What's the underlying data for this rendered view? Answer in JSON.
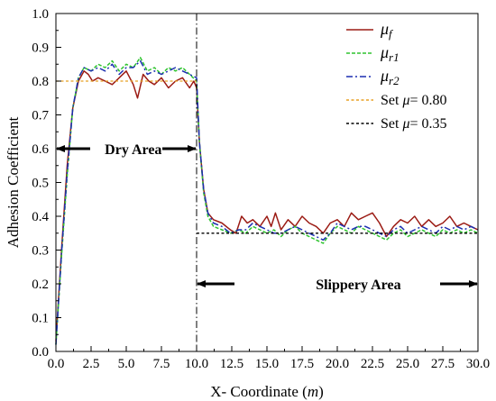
{
  "chart_data": {
    "type": "line",
    "xlabel": "X- Coordinate",
    "xlabel_unit": "m",
    "ylabel": "Adhesion Coefficient",
    "xlim": [
      0,
      30
    ],
    "ylim": [
      0,
      1.0
    ],
    "x_ticks": [
      "0.0",
      "2.5",
      "5.0",
      "7.5",
      "10.0",
      "12.5",
      "15.0",
      "17.5",
      "20.0",
      "22.5",
      "25.0",
      "27.5",
      "30.0"
    ],
    "y_ticks": [
      "0.0",
      "0.1",
      "0.2",
      "0.3",
      "0.4",
      "0.5",
      "0.6",
      "0.7",
      "0.8",
      "0.9",
      "1.0"
    ],
    "grid": false,
    "legend_position": "top-right",
    "series": [
      {
        "name": "μf",
        "legend": {
          "symbol": "μ",
          "sub": "f",
          "suffix": ""
        },
        "color": "#9b1b14",
        "style": "solid",
        "x": [
          0,
          0.4,
          0.8,
          1.2,
          1.6,
          2.0,
          2.3,
          2.6,
          3.0,
          3.5,
          4.0,
          4.5,
          5.0,
          5.5,
          5.8,
          6.2,
          6.6,
          7.0,
          7.5,
          8.0,
          8.5,
          9.0,
          9.5,
          9.8,
          10.0,
          10.2,
          10.5,
          10.8,
          11.2,
          11.8,
          12.4,
          12.8,
          13.2,
          13.6,
          14.0,
          14.5,
          15.0,
          15.3,
          15.6,
          16.0,
          16.5,
          17.0,
          17.5,
          18.0,
          18.5,
          19.0,
          19.5,
          20.0,
          20.5,
          21.0,
          21.5,
          22.0,
          22.5,
          23.0,
          23.5,
          24.0,
          24.5,
          25.0,
          25.5,
          26.0,
          26.5,
          27.0,
          27.5,
          28.0,
          28.5,
          29.0,
          29.5,
          30.0
        ],
        "y": [
          0.03,
          0.3,
          0.55,
          0.72,
          0.8,
          0.83,
          0.82,
          0.8,
          0.81,
          0.8,
          0.79,
          0.81,
          0.83,
          0.79,
          0.75,
          0.82,
          0.8,
          0.79,
          0.81,
          0.78,
          0.8,
          0.81,
          0.78,
          0.8,
          0.78,
          0.62,
          0.48,
          0.41,
          0.39,
          0.38,
          0.36,
          0.35,
          0.4,
          0.38,
          0.39,
          0.37,
          0.4,
          0.37,
          0.41,
          0.36,
          0.39,
          0.37,
          0.4,
          0.38,
          0.37,
          0.35,
          0.38,
          0.39,
          0.37,
          0.41,
          0.39,
          0.4,
          0.41,
          0.38,
          0.34,
          0.37,
          0.39,
          0.38,
          0.4,
          0.37,
          0.39,
          0.37,
          0.38,
          0.4,
          0.37,
          0.38,
          0.37,
          0.36
        ]
      },
      {
        "name": "μr1",
        "legend": {
          "symbol": "μ",
          "sub": "r1",
          "suffix": ""
        },
        "color": "#2fc42f",
        "style": "dashed",
        "x": [
          0,
          0.4,
          0.8,
          1.2,
          1.6,
          2.0,
          2.5,
          3.0,
          3.5,
          4.0,
          4.5,
          5.0,
          5.5,
          6.0,
          6.5,
          7.0,
          7.5,
          8.0,
          8.5,
          9.0,
          9.5,
          10.0,
          10.2,
          10.5,
          10.8,
          11.2,
          11.8,
          12.4,
          13.0,
          13.5,
          14.0,
          14.5,
          15.0,
          15.5,
          16.0,
          16.5,
          17.0,
          17.5,
          18.0,
          18.5,
          19.0,
          19.5,
          20.0,
          20.5,
          21.0,
          21.5,
          22.0,
          22.5,
          23.0,
          23.5,
          24.0,
          24.5,
          25.0,
          25.5,
          26.0,
          26.5,
          27.0,
          27.5,
          28.0,
          28.5,
          29.0,
          29.5,
          30.0
        ],
        "y": [
          0.02,
          0.28,
          0.52,
          0.72,
          0.81,
          0.84,
          0.83,
          0.85,
          0.84,
          0.86,
          0.83,
          0.85,
          0.84,
          0.87,
          0.83,
          0.84,
          0.82,
          0.84,
          0.83,
          0.84,
          0.82,
          0.8,
          0.62,
          0.47,
          0.4,
          0.37,
          0.36,
          0.35,
          0.36,
          0.35,
          0.37,
          0.36,
          0.35,
          0.36,
          0.34,
          0.36,
          0.37,
          0.35,
          0.34,
          0.33,
          0.32,
          0.35,
          0.37,
          0.36,
          0.35,
          0.37,
          0.36,
          0.35,
          0.34,
          0.33,
          0.35,
          0.36,
          0.34,
          0.35,
          0.36,
          0.35,
          0.34,
          0.36,
          0.35,
          0.36,
          0.35,
          0.36,
          0.35
        ]
      },
      {
        "name": "μr2",
        "legend": {
          "symbol": "μ",
          "sub": "r2",
          "suffix": ""
        },
        "color": "#1c2fb0",
        "style": "dashdot",
        "x": [
          0,
          0.4,
          0.8,
          1.2,
          1.6,
          2.0,
          2.5,
          3.0,
          3.5,
          4.0,
          4.5,
          5.0,
          5.5,
          6.0,
          6.5,
          7.0,
          7.5,
          8.0,
          8.5,
          9.0,
          9.5,
          10.0,
          10.2,
          10.5,
          10.8,
          11.2,
          11.8,
          12.4,
          13.0,
          13.5,
          14.0,
          14.5,
          15.0,
          15.5,
          16.0,
          16.5,
          17.0,
          17.5,
          18.0,
          18.5,
          19.0,
          19.5,
          20.0,
          20.5,
          21.0,
          21.5,
          22.0,
          22.5,
          23.0,
          23.5,
          24.0,
          24.5,
          25.0,
          25.5,
          26.0,
          26.5,
          27.0,
          27.5,
          28.0,
          28.5,
          29.0,
          29.5,
          30.0
        ],
        "y": [
          0.02,
          0.29,
          0.53,
          0.72,
          0.81,
          0.84,
          0.83,
          0.84,
          0.83,
          0.85,
          0.82,
          0.84,
          0.84,
          0.86,
          0.82,
          0.83,
          0.82,
          0.83,
          0.84,
          0.83,
          0.82,
          0.81,
          0.62,
          0.48,
          0.41,
          0.38,
          0.37,
          0.35,
          0.36,
          0.36,
          0.38,
          0.37,
          0.36,
          0.35,
          0.35,
          0.36,
          0.37,
          0.36,
          0.35,
          0.34,
          0.33,
          0.35,
          0.38,
          0.37,
          0.36,
          0.37,
          0.37,
          0.36,
          0.35,
          0.34,
          0.36,
          0.37,
          0.35,
          0.36,
          0.37,
          0.36,
          0.35,
          0.37,
          0.36,
          0.37,
          0.36,
          0.37,
          0.36
        ]
      },
      {
        "name": "Set μ= 0.80",
        "legend": {
          "symbol": "Set μ",
          "sub": "",
          "suffix": "= 0.80"
        },
        "color": "#e8a024",
        "style": "shortdash",
        "x": [
          0,
          10
        ],
        "y": [
          0.8,
          0.8
        ]
      },
      {
        "name": "Set μ= 0.35",
        "legend": {
          "symbol": "Set μ",
          "sub": "",
          "suffix": "= 0.35"
        },
        "color": "#000000",
        "style": "shortdash",
        "x": [
          10,
          30
        ],
        "y": [
          0.35,
          0.35
        ]
      }
    ],
    "divider": {
      "x": 10
    },
    "annotations": [
      {
        "text": "Dry Area",
        "x": 5.5,
        "y": 0.6,
        "arrow_from": [
          0,
          10
        ]
      },
      {
        "text": "Slippery Area",
        "x": 21.5,
        "y": 0.2,
        "arrow_from": [
          10,
          30
        ]
      }
    ]
  }
}
